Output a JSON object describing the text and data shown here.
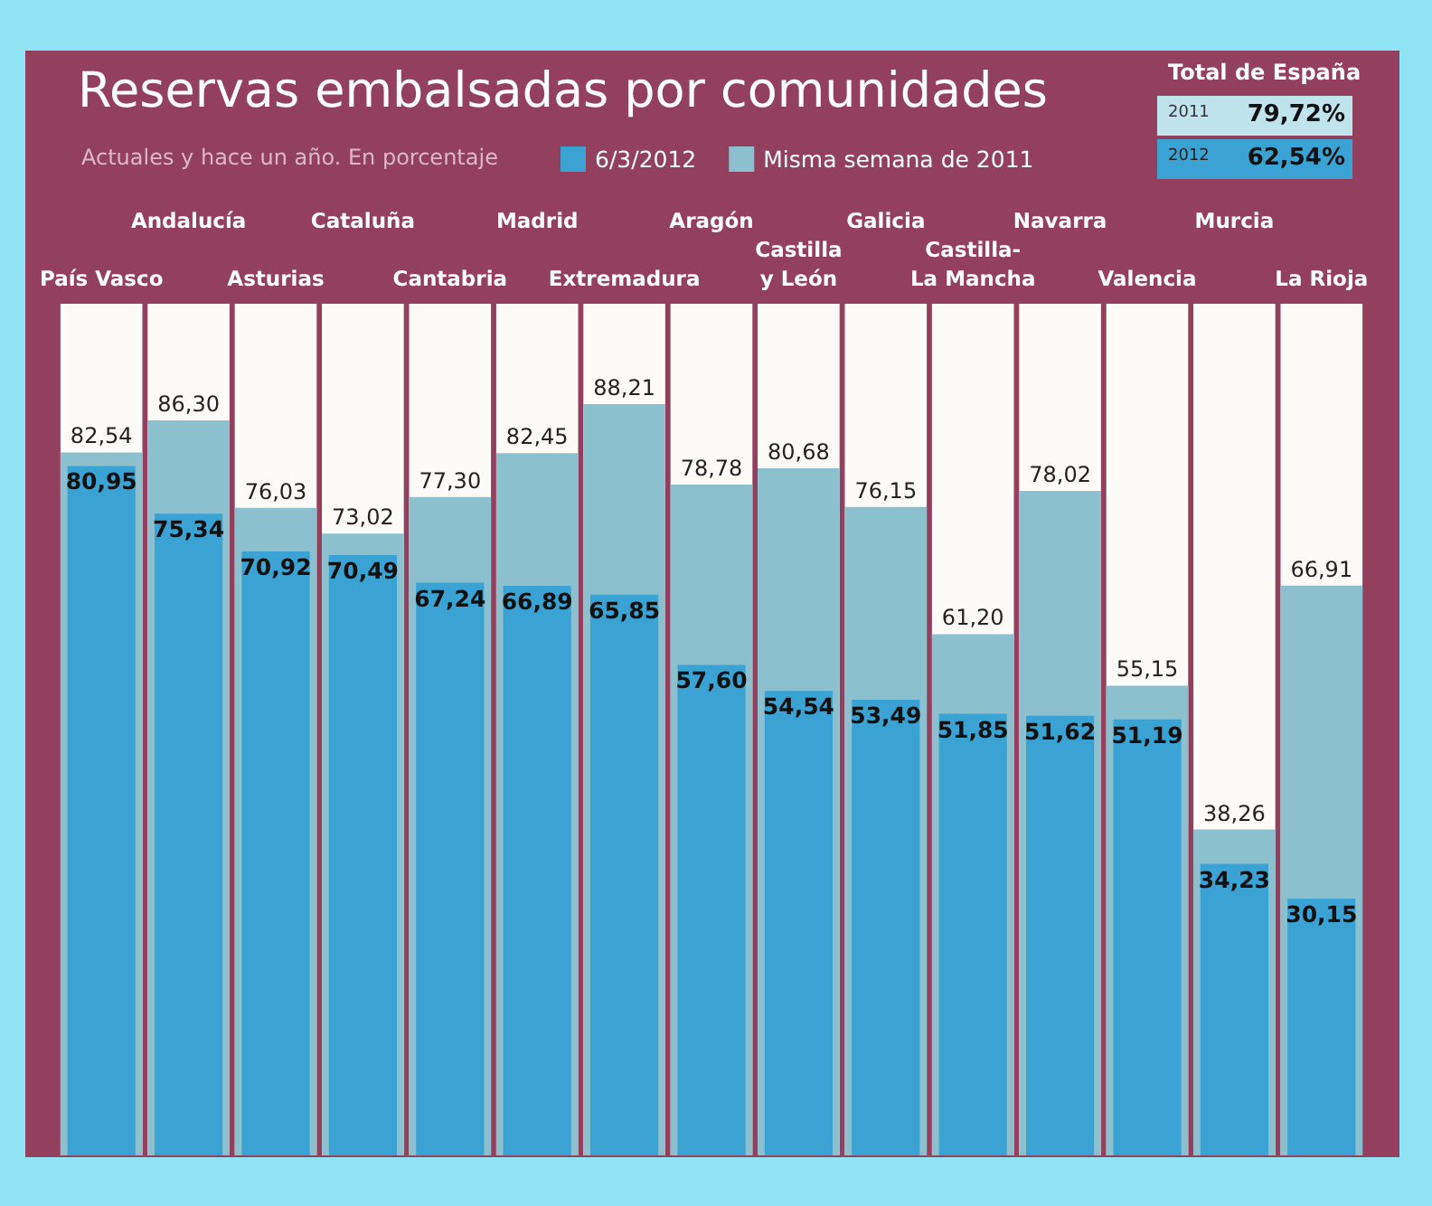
{
  "chart_data": {
    "type": "bar",
    "title": "Reservas embalsadas por comunidades",
    "subtitle": "Actuales y hace un año. En porcentaje",
    "categories": [
      "País Vasco",
      "Andalucía",
      "Asturias",
      "Cataluña",
      "Cantabria",
      "Madrid",
      "Extremadura",
      "Aragón",
      "Castilla\ny León",
      "Galicia",
      "Castilla-\nLa Mancha",
      "Navarra",
      "Valencia",
      "Murcia",
      "La Rioja"
    ],
    "series": [
      {
        "name": "6/3/2012",
        "color": "#3ba3d3",
        "values": [
          80.95,
          75.34,
          70.92,
          70.49,
          67.24,
          66.89,
          65.85,
          57.6,
          54.54,
          53.49,
          51.85,
          51.62,
          51.19,
          34.23,
          30.15
        ],
        "value_labels": [
          "80,95",
          "75,34",
          "70,92",
          "70,49",
          "67,24",
          "66,89",
          "65,85",
          "57,60",
          "54,54",
          "53,49",
          "51,85",
          "51,62",
          "51,19",
          "34,23",
          "30,15"
        ]
      },
      {
        "name": "Misma semana de 2011",
        "color": "#8cc0cf",
        "values": [
          82.54,
          86.3,
          76.03,
          73.02,
          77.3,
          82.45,
          88.21,
          78.78,
          80.68,
          76.15,
          61.2,
          78.02,
          55.15,
          38.26,
          66.91
        ],
        "value_labels": [
          "82,54",
          "86,30",
          "76,03",
          "73,02",
          "77,30",
          "82,45",
          "88,21",
          "78,78",
          "80,68",
          "76,15",
          "61,20",
          "78,02",
          "55,15",
          "38,26",
          "66,91"
        ]
      }
    ],
    "ylim": [
      0,
      100
    ],
    "tick_labels": "x",
    "legend": "top",
    "annotations": [
      "Total de España",
      "2011",
      "79,72%",
      "2012",
      "62,54%"
    ]
  }
}
